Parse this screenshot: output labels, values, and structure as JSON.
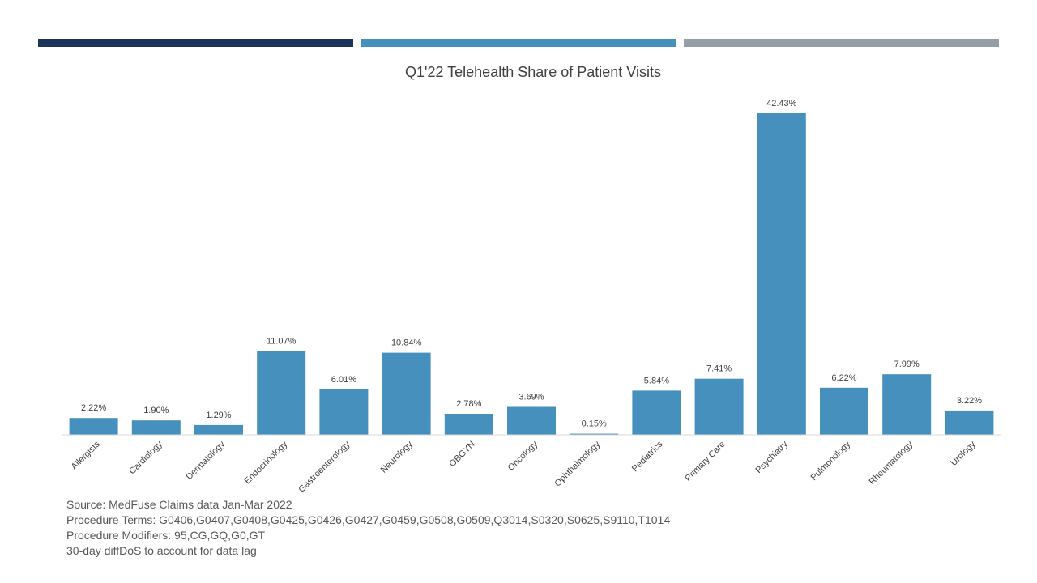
{
  "decor": {
    "bar_colors": [
      "#1c3459",
      "#4590bc",
      "#959ea6"
    ]
  },
  "chart_data": {
    "type": "bar",
    "title": "Q1'22 Telehealth Share of Patient Visits",
    "categories": [
      "Allergists",
      "Cardiology",
      "Dermatology",
      "Endocrinology",
      "Gastroenterology",
      "Neurology",
      "OBGYN",
      "Oncology",
      "Ophthalmology",
      "Pediatrics",
      "Primary Care",
      "Psychiatry",
      "Pulmonology",
      "Rheumatology",
      "Urology"
    ],
    "values": [
      2.22,
      1.9,
      1.29,
      11.07,
      6.01,
      10.84,
      2.78,
      3.69,
      0.15,
      5.84,
      7.41,
      42.43,
      6.22,
      7.99,
      3.22
    ],
    "data_labels": [
      "2.22%",
      "1.90%",
      "1.29%",
      "11.07%",
      "6.01%",
      "10.84%",
      "2.78%",
      "3.69%",
      "0.15%",
      "5.84%",
      "7.41%",
      "42.43%",
      "6.22%",
      "7.99%",
      "3.22%"
    ],
    "ylim": [
      0,
      42.43
    ],
    "bar_color": "#4590bc",
    "grid": false,
    "legend": "none"
  },
  "footnotes": [
    "Source: MedFuse Claims data Jan-Mar 2022",
    "Procedure Terms: G0406,G0407,G0408,G0425,G0426,G0427,G0459,G0508,G0509,Q3014,S0320,S0625,S9110,T1014",
    "Procedure Modifiers: 95,CG,GQ,G0,GT",
    "30-day diffDoS to account for data lag"
  ]
}
